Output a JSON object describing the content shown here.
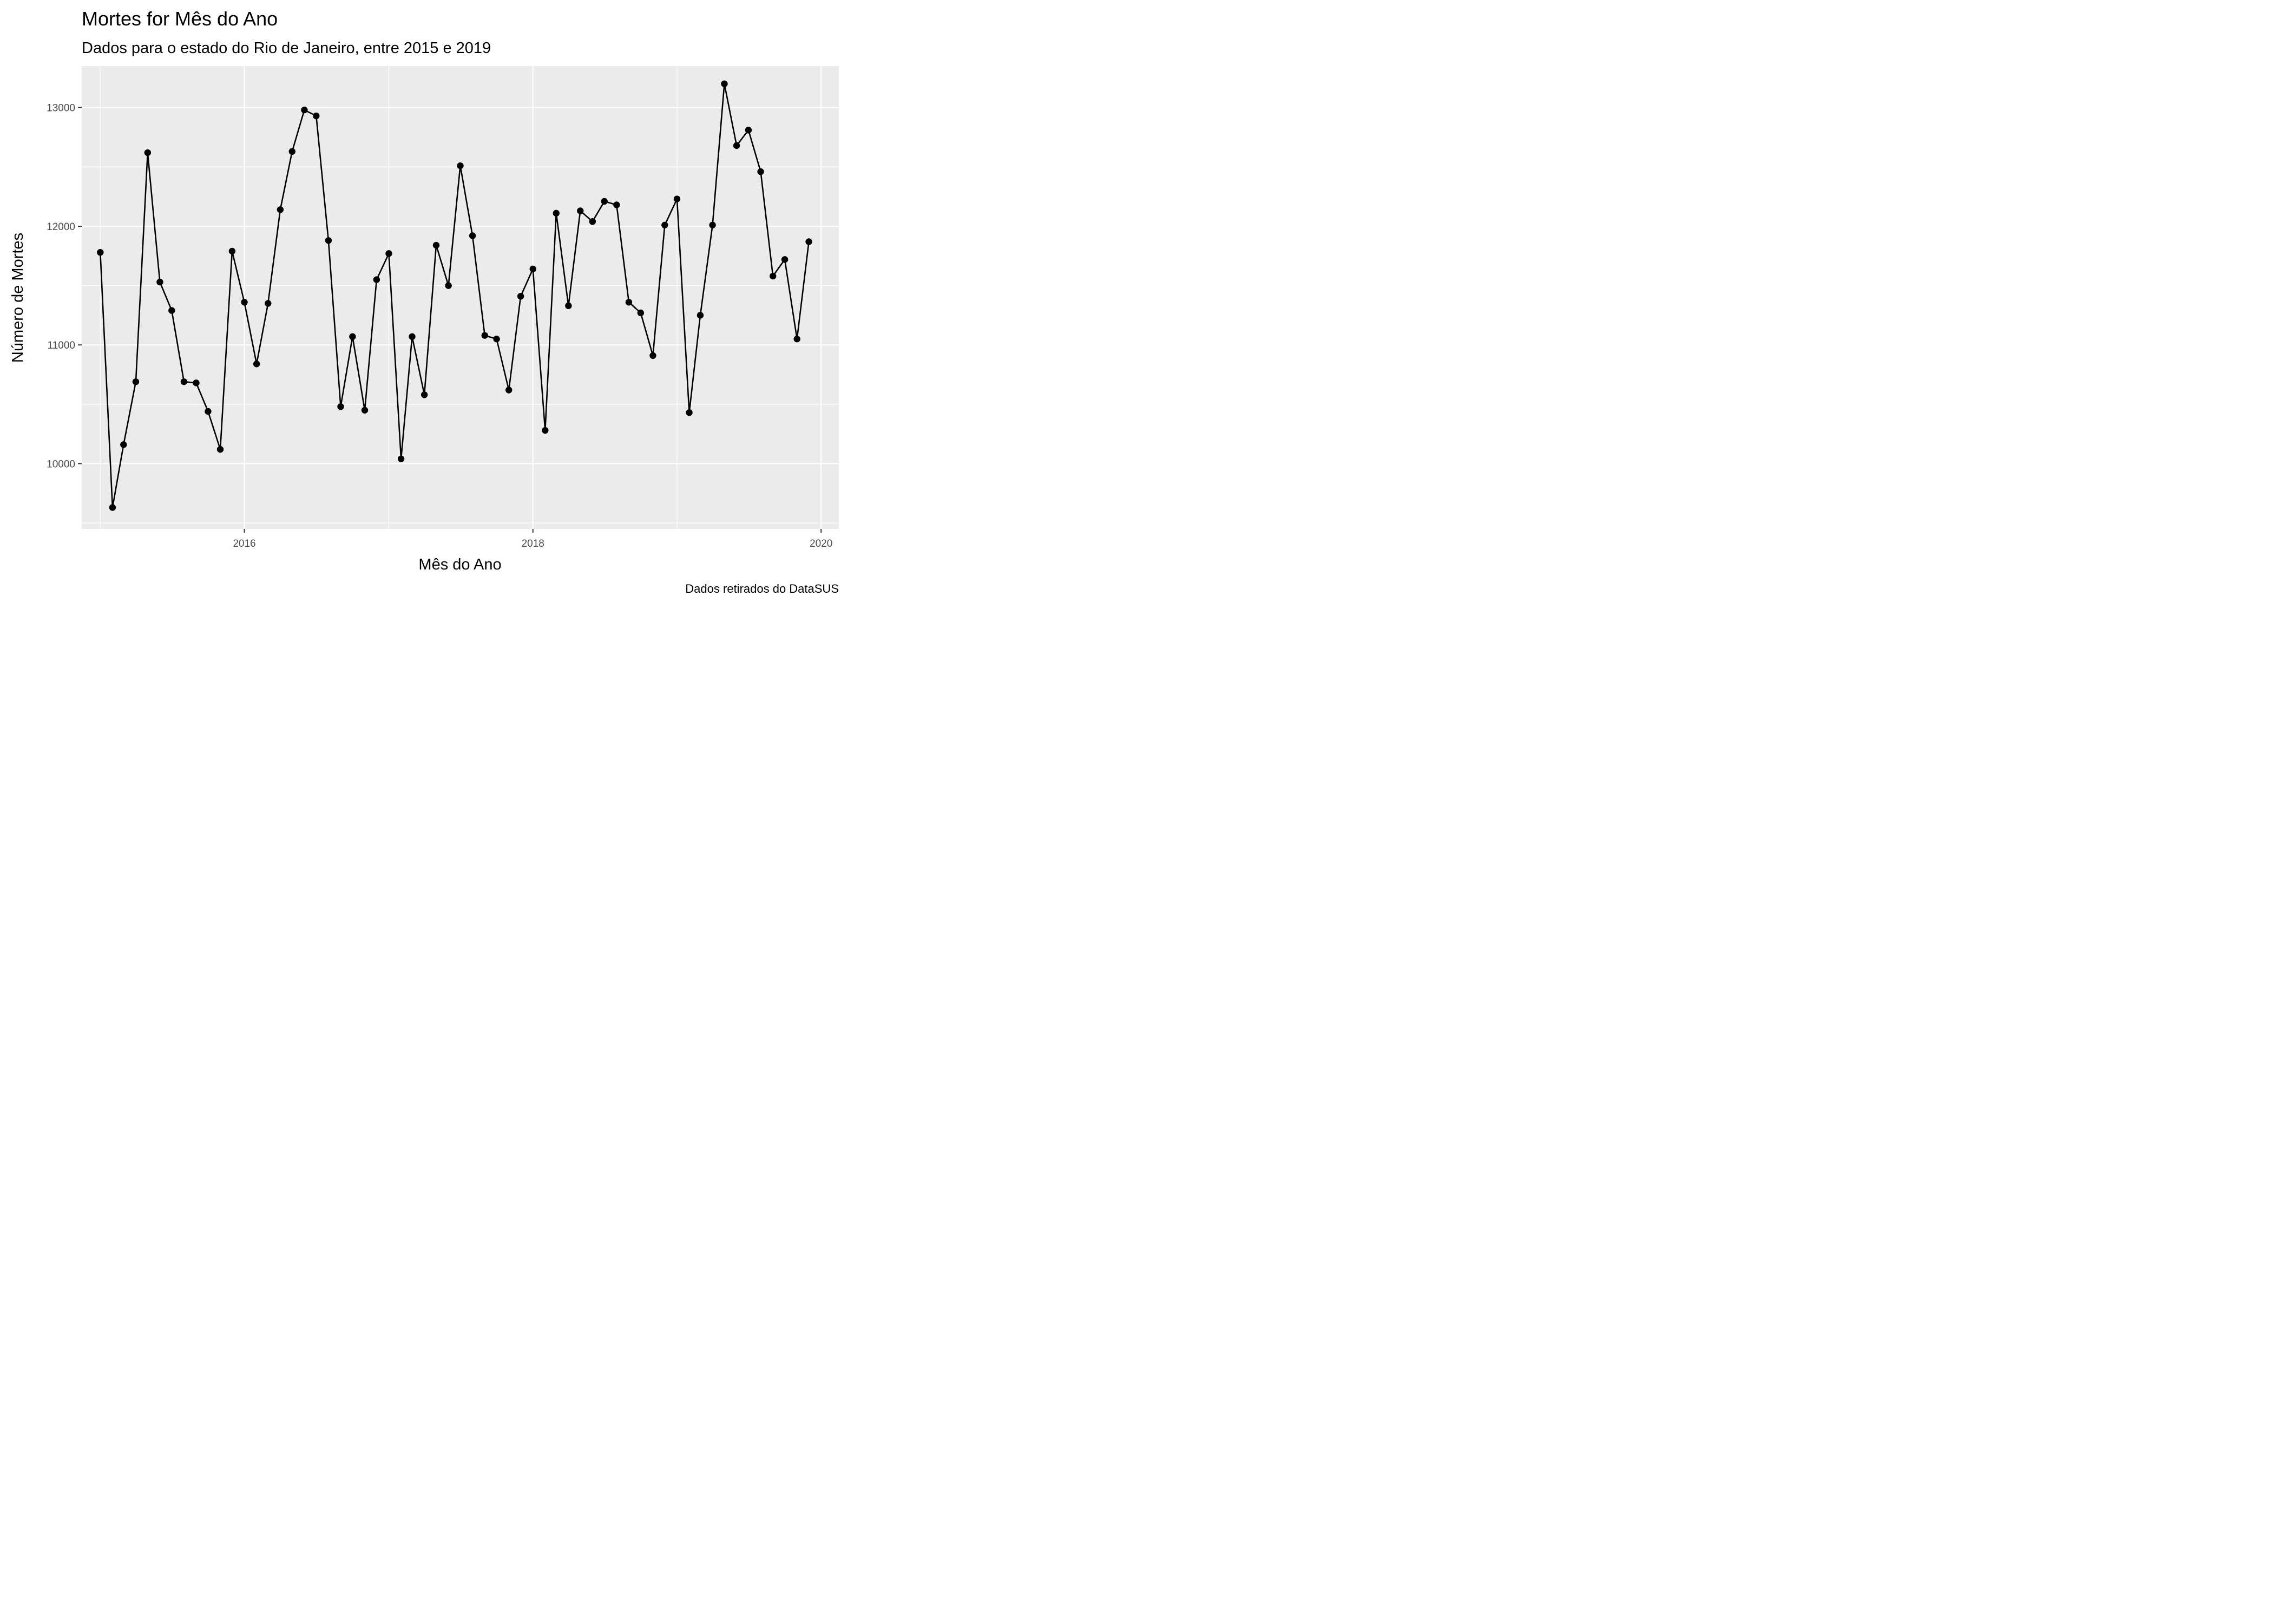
{
  "chart_data": {
    "type": "line",
    "title": "Mortes for Mês do Ano",
    "subtitle": "Dados para o estado do Rio de Janeiro, entre 2015 e 2019",
    "xlabel": "Mês do Ano",
    "ylabel": "Número de Mortes",
    "caption": "Dados retirados do DataSUS",
    "x_ticks": [
      "2016",
      "2018",
      "2020"
    ],
    "y_ticks": [
      "10000",
      "11000",
      "12000",
      "13000"
    ],
    "xlim": [
      "2014-11-15",
      "2020-02-15"
    ],
    "ylim": [
      9450,
      13350
    ],
    "grid": true,
    "points_marked": true,
    "colors": {
      "panel": "#ebebeb",
      "grid": "#ffffff",
      "line": "#000000"
    },
    "series": [
      {
        "x": [
          "2015-01",
          "2015-02",
          "2015-03",
          "2015-04",
          "2015-05",
          "2015-06",
          "2015-07",
          "2015-08",
          "2015-09",
          "2015-10",
          "2015-11",
          "2015-12",
          "2016-01",
          "2016-02",
          "2016-03",
          "2016-04",
          "2016-05",
          "2016-06",
          "2016-07",
          "2016-08",
          "2016-09",
          "2016-10",
          "2016-11",
          "2016-12",
          "2017-01",
          "2017-02",
          "2017-03",
          "2017-04",
          "2017-05",
          "2017-06",
          "2017-07",
          "2017-08",
          "2017-09",
          "2017-10",
          "2017-11",
          "2017-12",
          "2018-01",
          "2018-02",
          "2018-03",
          "2018-04",
          "2018-05",
          "2018-06",
          "2018-07",
          "2018-08",
          "2018-09",
          "2018-10",
          "2018-11",
          "2018-12",
          "2019-01",
          "2019-02",
          "2019-03",
          "2019-04",
          "2019-05",
          "2019-06",
          "2019-07",
          "2019-08",
          "2019-09",
          "2019-10",
          "2019-11",
          "2019-12"
        ],
        "values": [
          11780,
          9630,
          10160,
          10690,
          12620,
          11530,
          11290,
          10690,
          10680,
          10440,
          10120,
          11790,
          11360,
          10840,
          11350,
          12140,
          12630,
          12980,
          12930,
          11880,
          10480,
          11070,
          10450,
          11550,
          11770,
          10040,
          11070,
          10580,
          11840,
          11500,
          12510,
          11920,
          11080,
          11050,
          10620,
          11410,
          11640,
          10280,
          12110,
          11330,
          12130,
          12040,
          12210,
          12180,
          11360,
          11270,
          10910,
          12010,
          12230,
          10430,
          11250,
          12010,
          13200,
          12680,
          12810,
          12460,
          11580,
          11720,
          11050,
          11870
        ]
      }
    ]
  }
}
